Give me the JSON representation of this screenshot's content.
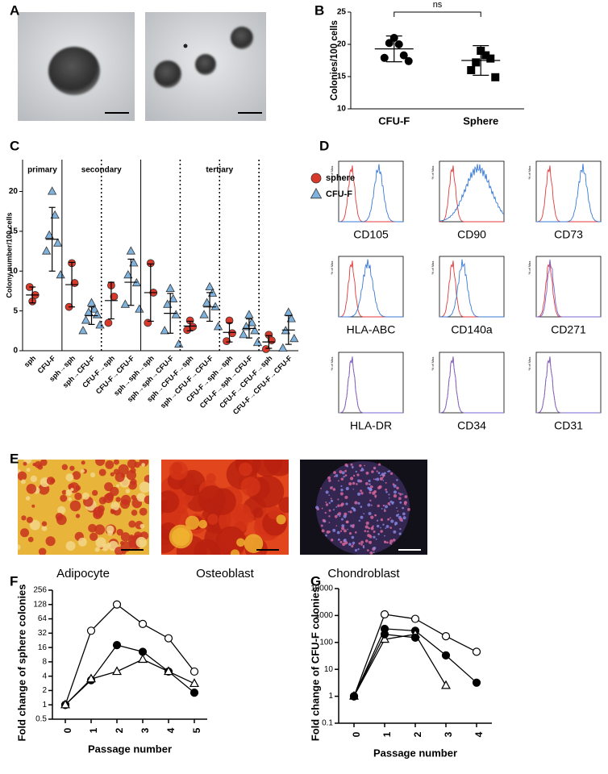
{
  "panel_labels": [
    "A",
    "B",
    "C",
    "D",
    "E",
    "F",
    "G"
  ],
  "chart_data": [
    {
      "type": "dot",
      "ylabel": "Colonies/100 cells",
      "annotation": "ns",
      "categories": [
        "CFU-F",
        "Sphere"
      ],
      "series": [
        {
          "color": "#000000",
          "marker": "circle",
          "values": [
            [
              21.0,
              20.0,
              20.2,
              18.3,
              17.9,
              17.4
            ],
            null
          ],
          "means": [
            19.3,
            null
          ],
          "errors": [
            2.0,
            null
          ]
        },
        {
          "color": "#000000",
          "marker": "square",
          "values": [
            null,
            [
              19.0,
              18.3,
              17.2,
              17.8,
              16.0,
              14.9
            ]
          ],
          "means": [
            null,
            17.5
          ],
          "errors": [
            null,
            2.3
          ]
        }
      ],
      "ylim": [
        10,
        25
      ],
      "yticks": [
        10,
        15,
        20,
        25
      ]
    },
    {
      "type": "dot",
      "ylabel": "Colony number/100 cells",
      "group_labels": [
        "primary",
        "secondary",
        "tertiary"
      ],
      "categories": [
        "sph",
        "CFU-F",
        "sph→sph",
        "sph→CFU-F",
        "CFU-F→sph",
        "CFU-F→CFU-F",
        "sph→sph→sph",
        "sph→sph→CFU-F",
        "sph→CFU-F→sph",
        "sph→CFU-F→CFU-F",
        "CFU-F→sph→sph",
        "CFU-F→sph→CFU-F",
        "CFU-F→CFU-F→sph",
        "CFU-F→CFU-F→CFU-F"
      ],
      "series": [
        {
          "name": "sphere",
          "color": "#d9392b",
          "marker": "circle",
          "values": [
            [
              6.2,
              7.0,
              8.0
            ],
            null,
            [
              11.0,
              8.5,
              5.5
            ],
            null,
            [
              8.2,
              6.8,
              3.5
            ],
            null,
            [
              11.0,
              7.3,
              3.5
            ],
            null,
            [
              3.8,
              3.0,
              2.6
            ],
            null,
            [
              3.8,
              2.2,
              1.2
            ],
            null,
            [
              2.0,
              1.3,
              0.2
            ],
            null
          ],
          "means": [
            7.0,
            null,
            8.3,
            null,
            6.3,
            null,
            7.3,
            null,
            3.1,
            null,
            2.3,
            null,
            1.1,
            null
          ],
          "errors": [
            1.0,
            null,
            2.8,
            null,
            2.3,
            null,
            3.6,
            null,
            0.6,
            null,
            1.2,
            null,
            0.8,
            null
          ]
        },
        {
          "name": "CFU-F",
          "color": "#7fb2dc",
          "marker": "triangle",
          "values": [
            null,
            [
              20.0,
              17.0,
              14.5,
              13.5,
              12.5,
              9.5
            ],
            null,
            [
              6.0,
              5.2,
              4.8,
              4.5,
              3.8,
              3.2,
              2.5
            ],
            null,
            [
              12.5,
              11.0,
              9.5,
              8.5,
              5.8,
              5.2
            ],
            null,
            [
              7.8,
              6.5,
              5.8,
              4.5,
              2.5,
              0.8
            ],
            null,
            [
              8.0,
              7.2,
              6.0,
              5.5,
              4.5,
              3.0
            ],
            null,
            [
              4.5,
              3.5,
              3.0,
              2.5,
              2.0,
              1.0
            ],
            null,
            [
              4.8,
              4.0,
              2.5,
              1.5,
              0.3
            ]
          ],
          "means": [
            null,
            14.0,
            null,
            4.4,
            null,
            8.6,
            null,
            4.7,
            null,
            5.5,
            null,
            2.8,
            null,
            2.6
          ],
          "errors": [
            null,
            4.0,
            null,
            1.1,
            null,
            2.9,
            null,
            2.5,
            null,
            1.8,
            null,
            1.2,
            null,
            1.8
          ]
        }
      ],
      "ylim": [
        0,
        24
      ],
      "yticks": [
        0,
        5,
        10,
        15,
        20
      ],
      "legend": "right"
    },
    {
      "type": "line",
      "yscale": "log",
      "xlabel": "Passage number",
      "ylabel": "Fold change of sphere colonies",
      "x": [
        0,
        1,
        2,
        3,
        4,
        5
      ],
      "xlim": [
        -0.5,
        5.5
      ],
      "xticks": [
        0,
        1,
        2,
        3,
        4,
        5
      ],
      "ylim": [
        0.5,
        256
      ],
      "yticks": [
        0.5,
        1,
        2,
        4,
        8,
        16,
        32,
        64,
        128,
        256
      ],
      "series": [
        {
          "color": "#000000",
          "marker": "circle",
          "filled": false,
          "values": [
            1,
            36,
            128,
            50,
            25,
            5
          ]
        },
        {
          "color": "#000000",
          "marker": "circle",
          "filled": true,
          "values": [
            1,
            3.3,
            18,
            13,
            5,
            1.8
          ]
        },
        {
          "color": "#000000",
          "marker": "triangle",
          "filled": false,
          "values": [
            1,
            3.5,
            5,
            9,
            5,
            2.8
          ]
        }
      ]
    },
    {
      "type": "line",
      "yscale": "log",
      "xlabel": "Passage number",
      "ylabel": "Fold change of CFU-F colonies",
      "x": [
        0,
        1,
        2,
        3,
        4
      ],
      "xlim": [
        -0.5,
        4.5
      ],
      "xticks": [
        0,
        1,
        2,
        3,
        4
      ],
      "ylim": [
        0.1,
        10000
      ],
      "yticks": [
        0.1,
        1,
        10,
        100,
        1000,
        10000
      ],
      "series": [
        {
          "color": "#000000",
          "marker": "circle",
          "filled": false,
          "values": [
            1,
            1100,
            750,
            170,
            45
          ]
        },
        {
          "color": "#000000",
          "marker": "circle",
          "filled": true,
          "values": [
            1,
            320,
            270,
            33,
            3.2
          ]
        },
        {
          "color": "#000000",
          "marker": "triangle",
          "filled": false,
          "values": [
            1,
            130,
            200,
            2.5,
            null
          ]
        },
        {
          "color": "#000000",
          "marker": "circle",
          "filled": true,
          "values": [
            1,
            200,
            150,
            null,
            null
          ]
        }
      ]
    }
  ],
  "flow_cytometry": {
    "ylabel": "% of Max",
    "markers": [
      "CD105",
      "CD90",
      "CD73",
      "HLA-ABC",
      "CD140a",
      "CD271",
      "HLA-DR",
      "CD34",
      "CD31"
    ]
  },
  "differentiation": {
    "captions": [
      "Adipocyte",
      "Osteoblast",
      "Chondroblast"
    ]
  }
}
